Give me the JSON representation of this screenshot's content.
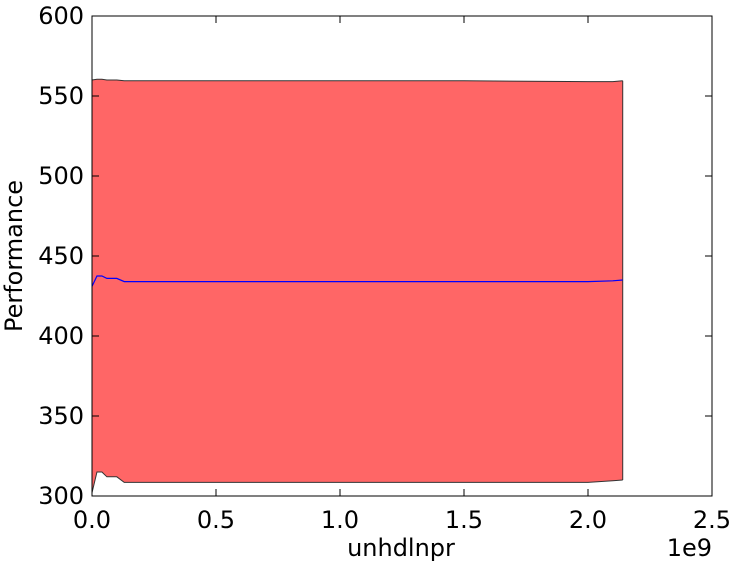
{
  "chart_data": {
    "type": "band-line",
    "xlabel": "unhdlnpr",
    "ylabel": "Performance",
    "x_offset_label": "1e9",
    "x": [
      0,
      20000000,
      40000000,
      60000000,
      100000000,
      130000000,
      500000000,
      1000000000,
      1500000000,
      2000000000,
      2100000000,
      2140000000
    ],
    "series": [
      {
        "color": "#0000ff",
        "values": [
          431,
          437.5,
          437.5,
          436,
          436,
          434,
          434,
          434,
          434,
          434,
          434.5,
          435
        ]
      }
    ],
    "band": {
      "color": "#ff6666",
      "edge_color": "#333333",
      "upper": [
        560,
        560.5,
        560.5,
        560,
        560,
        559.5,
        559.5,
        559.5,
        559.5,
        559,
        559,
        559.5
      ],
      "lower": [
        302,
        315,
        315,
        312,
        312,
        308.5,
        308.5,
        308.5,
        308.5,
        308.5,
        309.5,
        310
      ]
    },
    "xlim": [
      0,
      2500000000
    ],
    "xticks": [
      {
        "value": 0,
        "label": "0.0"
      },
      {
        "value": 500000000,
        "label": "0.5"
      },
      {
        "value": 1000000000,
        "label": "1.0"
      },
      {
        "value": 1500000000,
        "label": "1.5"
      },
      {
        "value": 2000000000,
        "label": "2.0"
      },
      {
        "value": 2500000000,
        "label": "2.5"
      }
    ],
    "ylim": [
      300,
      600
    ],
    "yticks": [
      300,
      350,
      400,
      450,
      500,
      550,
      600
    ]
  }
}
